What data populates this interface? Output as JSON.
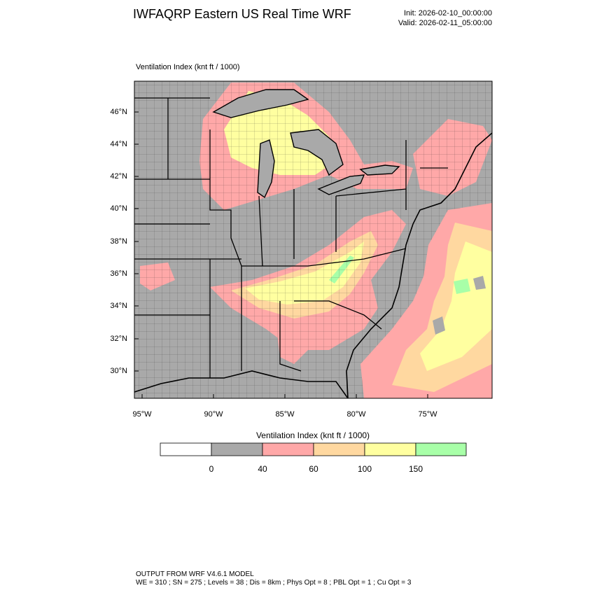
{
  "header": {
    "title": "IWFAQRP Eastern US Real Time WRF",
    "init": "Init: 2026-02-10_00:00:00",
    "valid": "Valid: 2026-02-11_05:00:00"
  },
  "field": {
    "name": "Ventilation Index",
    "units": "(knt ft / 1000)",
    "label": "Ventilation Index   (knt ft / 1000)"
  },
  "axes": {
    "lat_labels": [
      "46°N",
      "44°N",
      "42°N",
      "40°N",
      "38°N",
      "36°N",
      "34°N",
      "32°N",
      "30°N"
    ],
    "lon_labels": [
      "95°W",
      "90°W",
      "85°W",
      "80°W",
      "75°W"
    ]
  },
  "colorbar": {
    "title": "Ventilation Index  (knt ft / 1000)",
    "ticks": [
      "0",
      "40",
      "60",
      "100",
      "150"
    ],
    "colors": [
      "#ffffff",
      "#a9a9a9",
      "#ffa8a8",
      "#ffd8a0",
      "#ffffa0",
      "#a8ffa8"
    ]
  },
  "footer": {
    "line1": "OUTPUT FROM WRF V4.6.1 MODEL",
    "line2": "WE = 310 ; SN = 275 ; Levels = 38 ; Dis = 8km ; Phys Opt = 8 ; PBL Opt = 1 ; Cu Opt = 3"
  }
}
